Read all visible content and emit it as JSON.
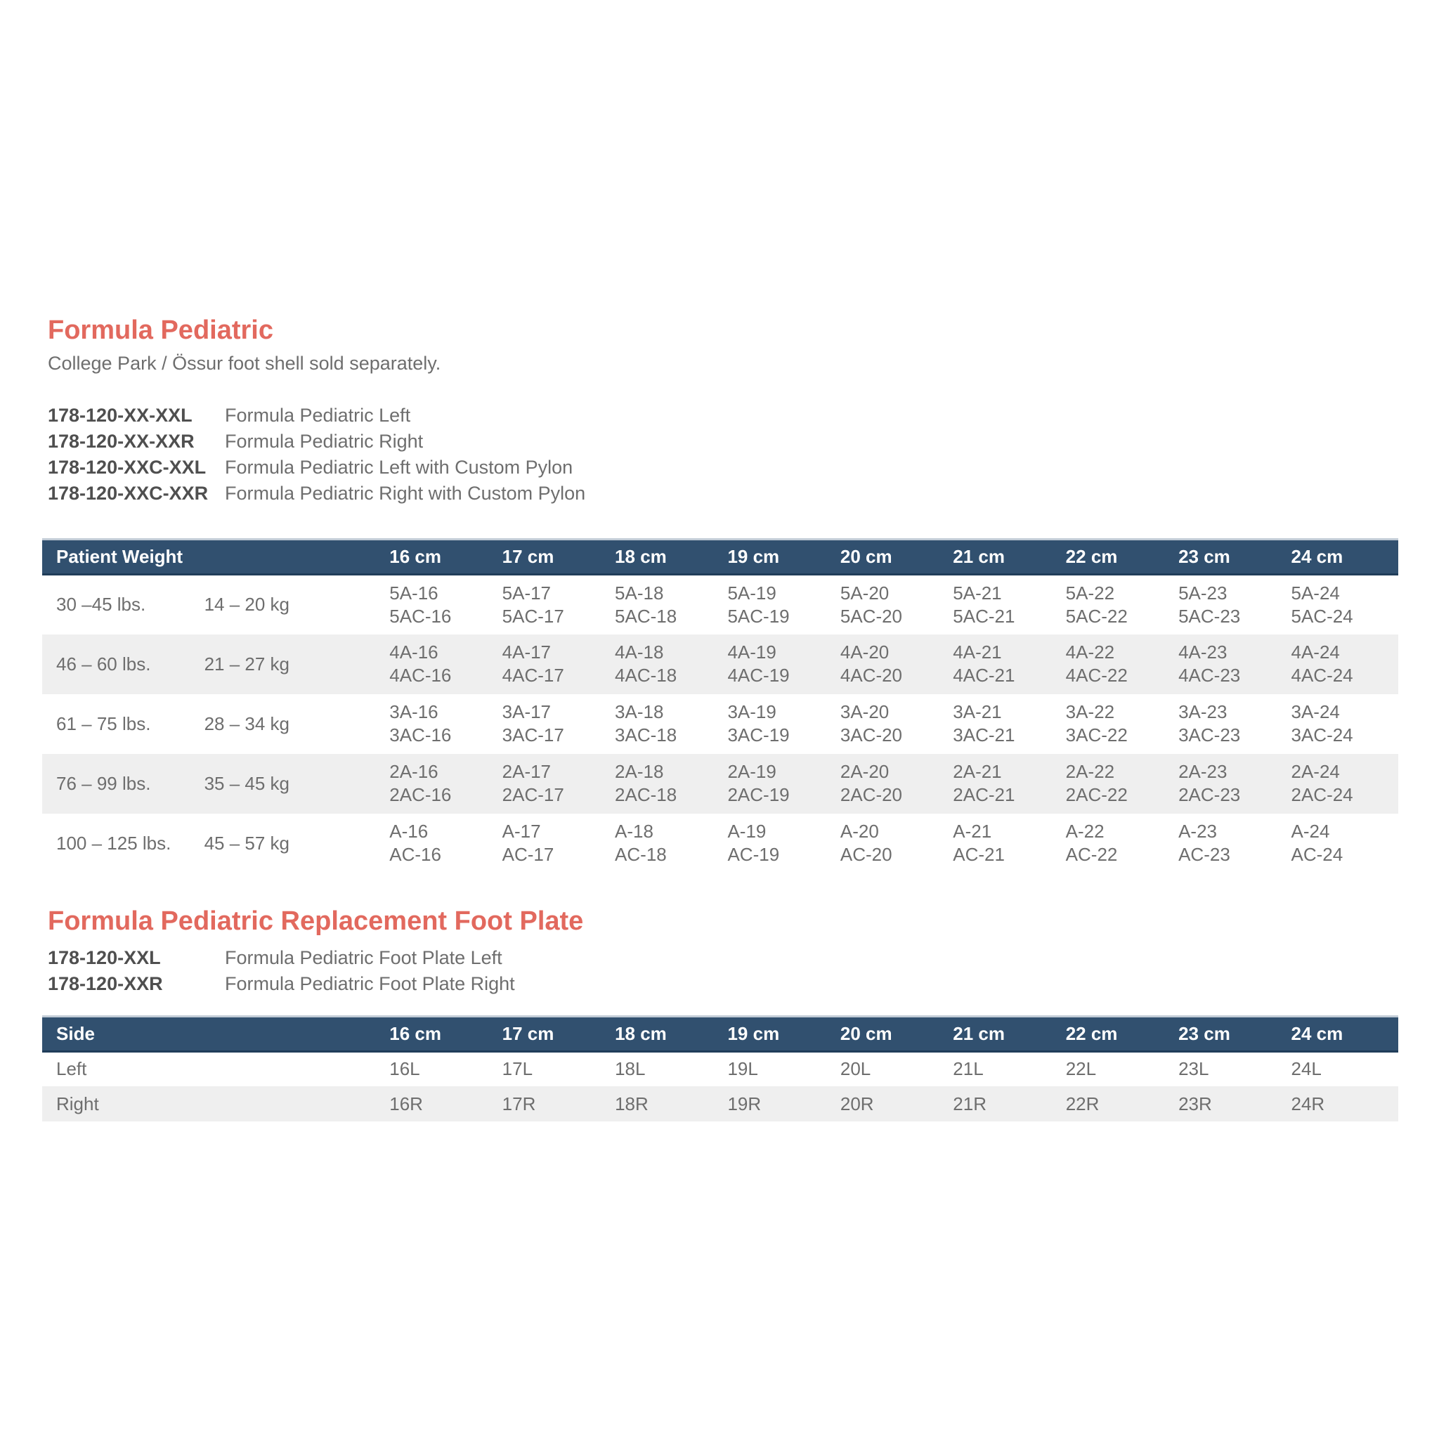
{
  "colors": {
    "accent_red": "#e2695e",
    "header_navy": "#31506f",
    "header_text": "#ffffff",
    "row_alt_gray": "#efefef",
    "body_text_gray": "#6e6e6e",
    "part_number_gray": "#4f4f4f"
  },
  "section1": {
    "title": "Formula Pediatric",
    "subtitle": "College Park / Össur foot shell sold separately.",
    "parts": [
      {
        "number": "178-120-XX-XXL",
        "description": "Formula Pediatric Left"
      },
      {
        "number": "178-120-XX-XXR",
        "description": "Formula Pediatric Right"
      },
      {
        "number": "178-120-XXC-XXL",
        "description": "Formula Pediatric Left with Custom Pylon"
      },
      {
        "number": "178-120-XXC-XXR",
        "description": "Formula Pediatric Right with Custom Pylon"
      }
    ]
  },
  "weight_table": {
    "row_header_label": "Patient Weight",
    "size_headers": [
      "16 cm",
      "17 cm",
      "18 cm",
      "19 cm",
      "20 cm",
      "21 cm",
      "22 cm",
      "23 cm",
      "24 cm"
    ],
    "rows": [
      {
        "lbs": "30 –45 lbs.",
        "kg": "14 – 20 kg",
        "codes": [
          [
            "5A-16",
            "5AC-16"
          ],
          [
            "5A-17",
            "5AC-17"
          ],
          [
            "5A-18",
            "5AC-18"
          ],
          [
            "5A-19",
            "5AC-19"
          ],
          [
            "5A-20",
            "5AC-20"
          ],
          [
            "5A-21",
            "5AC-21"
          ],
          [
            "5A-22",
            "5AC-22"
          ],
          [
            "5A-23",
            "5AC-23"
          ],
          [
            "5A-24",
            "5AC-24"
          ]
        ]
      },
      {
        "lbs": "46 – 60 lbs.",
        "kg": "21 – 27 kg",
        "codes": [
          [
            "4A-16",
            "4AC-16"
          ],
          [
            "4A-17",
            "4AC-17"
          ],
          [
            "4A-18",
            "4AC-18"
          ],
          [
            "4A-19",
            "4AC-19"
          ],
          [
            "4A-20",
            "4AC-20"
          ],
          [
            "4A-21",
            "4AC-21"
          ],
          [
            "4A-22",
            "4AC-22"
          ],
          [
            "4A-23",
            "4AC-23"
          ],
          [
            "4A-24",
            "4AC-24"
          ]
        ]
      },
      {
        "lbs": "61 – 75 lbs.",
        "kg": "28 – 34 kg",
        "codes": [
          [
            "3A-16",
            "3AC-16"
          ],
          [
            "3A-17",
            "3AC-17"
          ],
          [
            "3A-18",
            "3AC-18"
          ],
          [
            "3A-19",
            "3AC-19"
          ],
          [
            "3A-20",
            "3AC-20"
          ],
          [
            "3A-21",
            "3AC-21"
          ],
          [
            "3A-22",
            "3AC-22"
          ],
          [
            "3A-23",
            "3AC-23"
          ],
          [
            "3A-24",
            "3AC-24"
          ]
        ]
      },
      {
        "lbs": "76 – 99 lbs.",
        "kg": "35 – 45 kg",
        "codes": [
          [
            "2A-16",
            "2AC-16"
          ],
          [
            "2A-17",
            "2AC-17"
          ],
          [
            "2A-18",
            "2AC-18"
          ],
          [
            "2A-19",
            "2AC-19"
          ],
          [
            "2A-20",
            "2AC-20"
          ],
          [
            "2A-21",
            "2AC-21"
          ],
          [
            "2A-22",
            "2AC-22"
          ],
          [
            "2A-23",
            "2AC-23"
          ],
          [
            "2A-24",
            "2AC-24"
          ]
        ]
      },
      {
        "lbs": "100 – 125 lbs.",
        "kg": "45 – 57 kg",
        "codes": [
          [
            "A-16",
            "AC-16"
          ],
          [
            "A-17",
            "AC-17"
          ],
          [
            "A-18",
            "AC-18"
          ],
          [
            "A-19",
            "AC-19"
          ],
          [
            "A-20",
            "AC-20"
          ],
          [
            "A-21",
            "AC-21"
          ],
          [
            "A-22",
            "AC-22"
          ],
          [
            "A-23",
            "AC-23"
          ],
          [
            "A-24",
            "AC-24"
          ]
        ]
      }
    ]
  },
  "section2": {
    "title": "Formula Pediatric Replacement Foot Plate",
    "parts": [
      {
        "number": "178-120-XXL",
        "description": "Formula Pediatric Foot Plate Left"
      },
      {
        "number": "178-120-XXR",
        "description": "Formula Pediatric Foot Plate Right"
      }
    ]
  },
  "plate_table": {
    "row_header_label": "Side",
    "size_headers": [
      "16 cm",
      "17 cm",
      "18 cm",
      "19 cm",
      "20 cm",
      "21 cm",
      "22 cm",
      "23 cm",
      "24 cm"
    ],
    "rows": [
      {
        "side": "Left",
        "codes": [
          "16L",
          "17L",
          "18L",
          "19L",
          "20L",
          "21L",
          "22L",
          "23L",
          "24L"
        ]
      },
      {
        "side": "Right",
        "codes": [
          "16R",
          "17R",
          "18R",
          "19R",
          "20R",
          "21R",
          "22R",
          "23R",
          "24R"
        ]
      }
    ]
  }
}
